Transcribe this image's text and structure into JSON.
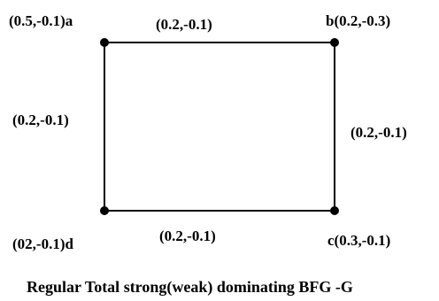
{
  "vertices": {
    "a": {
      "name": "a",
      "label": "(0.5,-0.1)a"
    },
    "b": {
      "name": "b",
      "label": "b(0.2,-0.3)"
    },
    "c": {
      "name": "c",
      "label": "c(0.3,-0.1)"
    },
    "d": {
      "name": "d",
      "label": "(02,-0.1)d"
    }
  },
  "edges": {
    "ab": {
      "from": "a",
      "to": "b",
      "label": "(0.2,-0.1)"
    },
    "bc": {
      "from": "b",
      "to": "c",
      "label": "(0.2,-0.1)"
    },
    "cd": {
      "from": "c",
      "to": "d",
      "label": "(0.2,-0.1)"
    },
    "da": {
      "from": "d",
      "to": "a",
      "label": "(0.2,-0.1)"
    }
  },
  "caption": "Regular Total strong(weak) dominating BFG -G",
  "colors": {
    "line": "#000000",
    "vertex": "#000000",
    "text": "#000000",
    "background": "#ffffff"
  }
}
